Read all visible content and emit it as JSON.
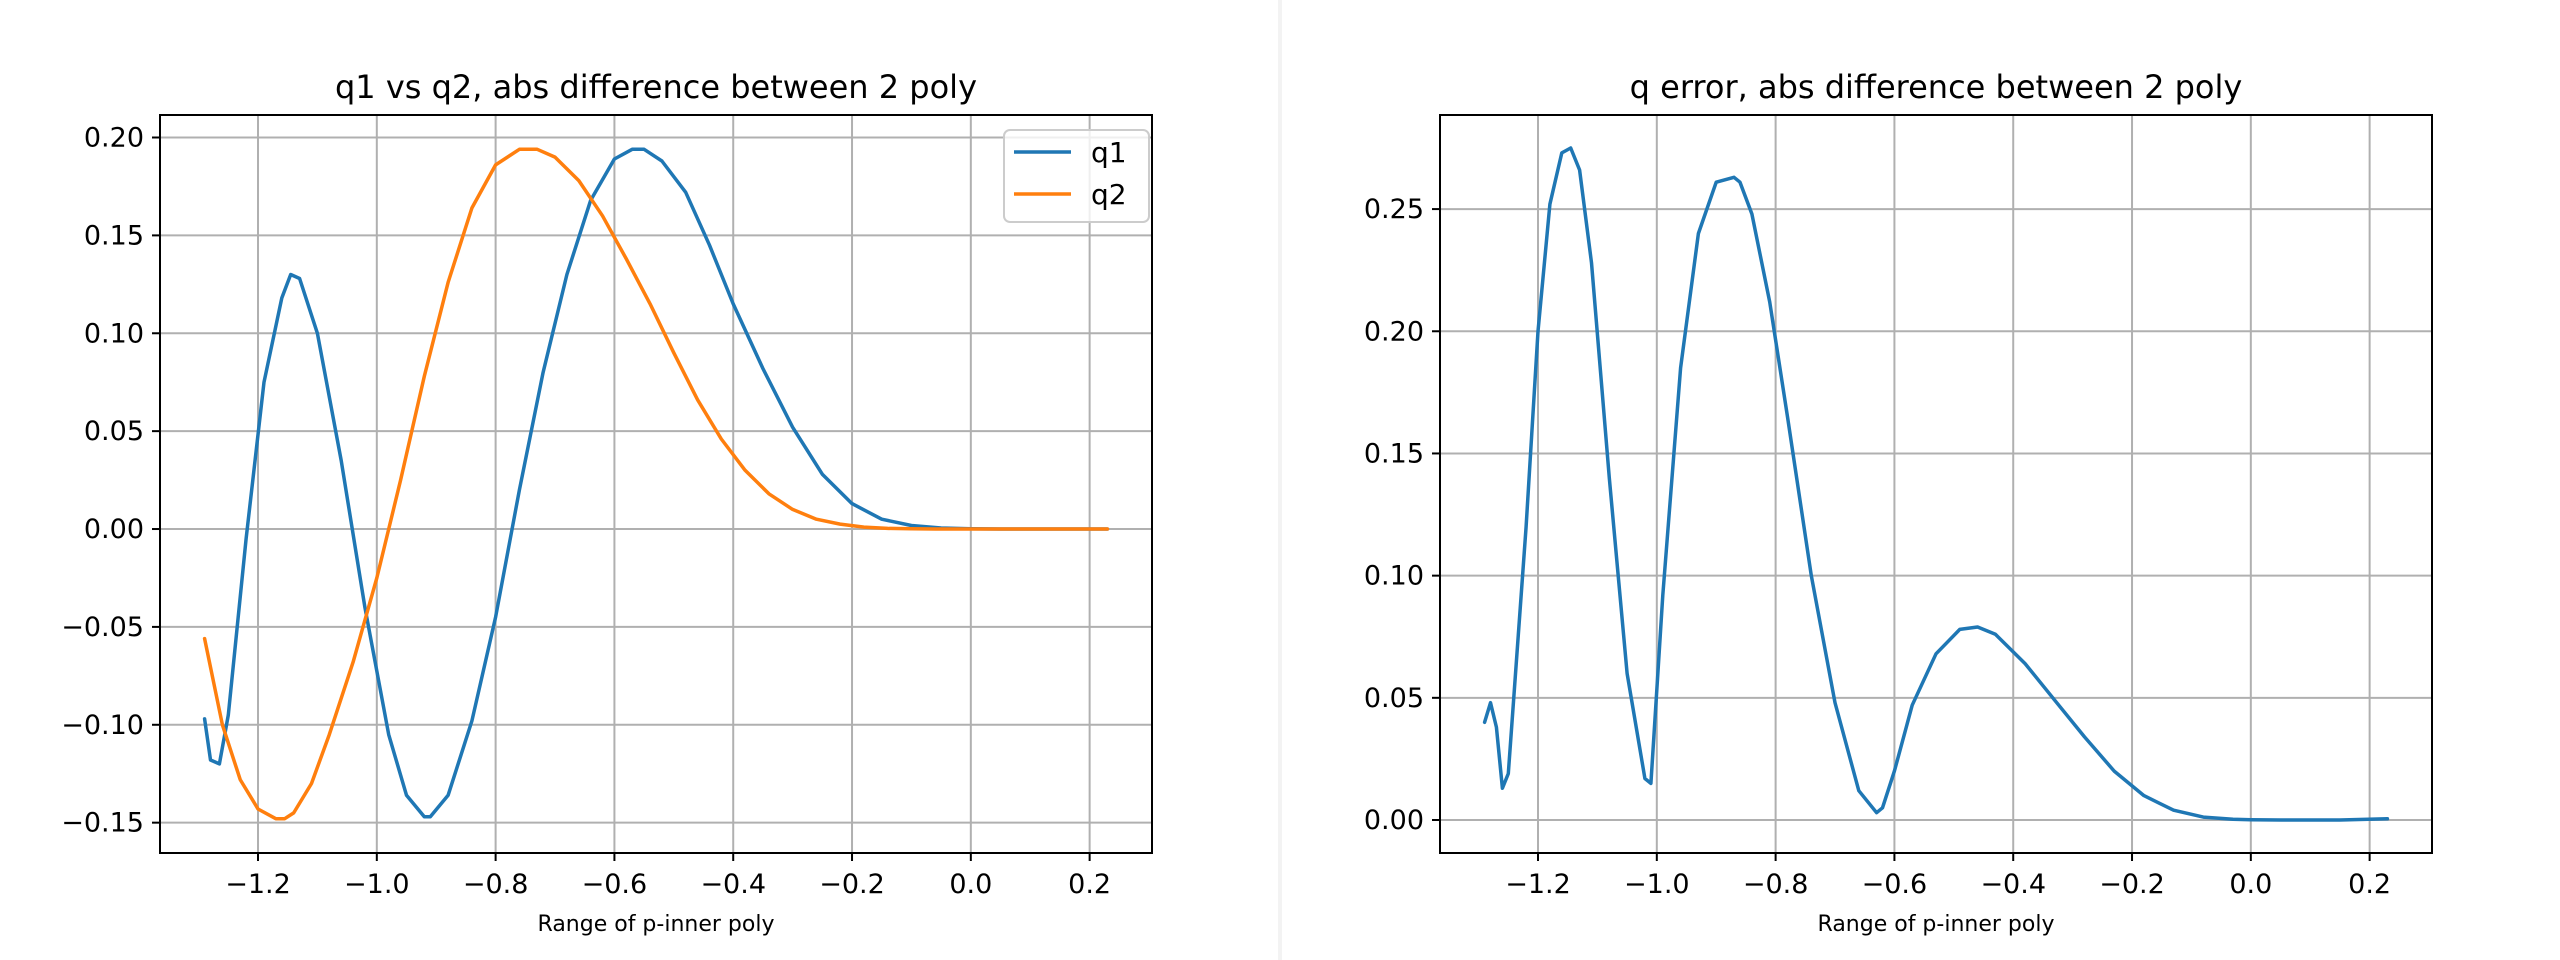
{
  "colors": {
    "q1": "#1f77b4",
    "q2": "#ff7f0e",
    "grid": "#b0b0b0",
    "axes": "#000000"
  },
  "chart_data": [
    {
      "type": "line",
      "title": "q1 vs q2, abs difference between 2 poly",
      "xlabel": "Range of p-inner poly",
      "ylabel": "",
      "xlim": [
        -1.365,
        0.305
      ],
      "ylim": [
        -0.1655,
        0.2115
      ],
      "xticks": [
        -1.2,
        -1.0,
        -0.8,
        -0.6,
        -0.4,
        -0.2,
        0.0,
        0.2
      ],
      "xtick_labels": [
        "−1.2",
        "−1.0",
        "−0.8",
        "−0.6",
        "−0.4",
        "−0.2",
        "0.0",
        "0.2"
      ],
      "yticks": [
        -0.15,
        -0.1,
        -0.05,
        0.0,
        0.05,
        0.1,
        0.15,
        0.2
      ],
      "ytick_labels": [
        "−0.15",
        "−0.10",
        "−0.05",
        "0.00",
        "0.05",
        "0.10",
        "0.15",
        "0.20"
      ],
      "grid": true,
      "legend": "top-right",
      "series": [
        {
          "name": "q1",
          "color": "#1f77b4",
          "x": [
            -1.29,
            -1.28,
            -1.265,
            -1.25,
            -1.22,
            -1.19,
            -1.16,
            -1.145,
            -1.13,
            -1.1,
            -1.06,
            -1.02,
            -0.98,
            -0.95,
            -0.92,
            -0.91,
            -0.88,
            -0.84,
            -0.8,
            -0.76,
            -0.72,
            -0.68,
            -0.64,
            -0.6,
            -0.57,
            -0.55,
            -0.52,
            -0.48,
            -0.44,
            -0.4,
            -0.35,
            -0.3,
            -0.25,
            -0.2,
            -0.15,
            -0.1,
            -0.05,
            0.0,
            0.05,
            0.1,
            0.15,
            0.23
          ],
          "y": [
            -0.097,
            -0.118,
            -0.12,
            -0.095,
            -0.005,
            0.075,
            0.118,
            0.13,
            0.128,
            0.1,
            0.035,
            -0.04,
            -0.105,
            -0.136,
            -0.147,
            -0.147,
            -0.136,
            -0.098,
            -0.045,
            0.02,
            0.08,
            0.13,
            0.168,
            0.189,
            0.194,
            0.194,
            0.188,
            0.172,
            0.145,
            0.115,
            0.082,
            0.052,
            0.028,
            0.013,
            0.005,
            0.0018,
            0.0005,
            0.0001,
            0.0,
            0.0,
            0.0,
            0.0
          ]
        },
        {
          "name": "q2",
          "color": "#ff7f0e",
          "x": [
            -1.29,
            -1.26,
            -1.23,
            -1.2,
            -1.17,
            -1.155,
            -1.14,
            -1.11,
            -1.08,
            -1.04,
            -1.0,
            -0.96,
            -0.92,
            -0.88,
            -0.84,
            -0.8,
            -0.76,
            -0.73,
            -0.7,
            -0.66,
            -0.62,
            -0.58,
            -0.54,
            -0.5,
            -0.46,
            -0.42,
            -0.38,
            -0.34,
            -0.3,
            -0.26,
            -0.22,
            -0.18,
            -0.14,
            -0.1,
            -0.06,
            -0.02,
            0.0,
            0.05,
            0.1,
            0.15,
            0.23
          ],
          "y": [
            -0.056,
            -0.1,
            -0.128,
            -0.143,
            -0.148,
            -0.148,
            -0.145,
            -0.13,
            -0.105,
            -0.068,
            -0.025,
            0.025,
            0.078,
            0.126,
            0.164,
            0.186,
            0.194,
            0.194,
            0.19,
            0.178,
            0.16,
            0.138,
            0.115,
            0.09,
            0.066,
            0.046,
            0.03,
            0.018,
            0.01,
            0.005,
            0.0025,
            0.001,
            0.0003,
            0.0001,
            0.0,
            0.0,
            0.0,
            0.0,
            0.0,
            0.0,
            0.0
          ]
        }
      ]
    },
    {
      "type": "line",
      "title": "q error, abs difference between 2 poly",
      "xlabel": "Range of p-inner poly",
      "ylabel": "",
      "xlim": [
        -1.365,
        0.305
      ],
      "ylim": [
        -0.0135,
        0.2885
      ],
      "xticks": [
        -1.2,
        -1.0,
        -0.8,
        -0.6,
        -0.4,
        -0.2,
        0.0,
        0.2
      ],
      "xtick_labels": [
        "−1.2",
        "−1.0",
        "−0.8",
        "−0.6",
        "−0.4",
        "−0.2",
        "0.0",
        "0.2"
      ],
      "yticks": [
        0.0,
        0.05,
        0.1,
        0.15,
        0.2,
        0.25
      ],
      "ytick_labels": [
        "0.00",
        "0.05",
        "0.10",
        "0.15",
        "0.20",
        "0.25"
      ],
      "grid": true,
      "legend": "none",
      "series": [
        {
          "color": "#1f77b4",
          "x": [
            -1.29,
            -1.28,
            -1.27,
            -1.26,
            -1.25,
            -1.22,
            -1.2,
            -1.18,
            -1.16,
            -1.145,
            -1.13,
            -1.11,
            -1.08,
            -1.05,
            -1.02,
            -1.01,
            -0.99,
            -0.96,
            -0.93,
            -0.9,
            -0.87,
            -0.86,
            -0.84,
            -0.81,
            -0.78,
            -0.74,
            -0.7,
            -0.66,
            -0.63,
            -0.62,
            -0.6,
            -0.57,
            -0.53,
            -0.49,
            -0.46,
            -0.43,
            -0.38,
            -0.33,
            -0.28,
            -0.23,
            -0.18,
            -0.13,
            -0.08,
            -0.03,
            0.0,
            0.05,
            0.1,
            0.15,
            0.23
          ],
          "y": [
            0.04,
            0.048,
            0.038,
            0.013,
            0.019,
            0.12,
            0.2,
            0.252,
            0.273,
            0.275,
            0.266,
            0.228,
            0.14,
            0.06,
            0.017,
            0.015,
            0.092,
            0.185,
            0.24,
            0.261,
            0.263,
            0.261,
            0.248,
            0.212,
            0.165,
            0.1,
            0.048,
            0.012,
            0.003,
            0.005,
            0.02,
            0.047,
            0.068,
            0.078,
            0.079,
            0.076,
            0.064,
            0.049,
            0.034,
            0.02,
            0.01,
            0.004,
            0.0012,
            0.0003,
            0.0001,
            0.0,
            0.0,
            0.0,
            0.0005
          ]
        }
      ]
    }
  ]
}
